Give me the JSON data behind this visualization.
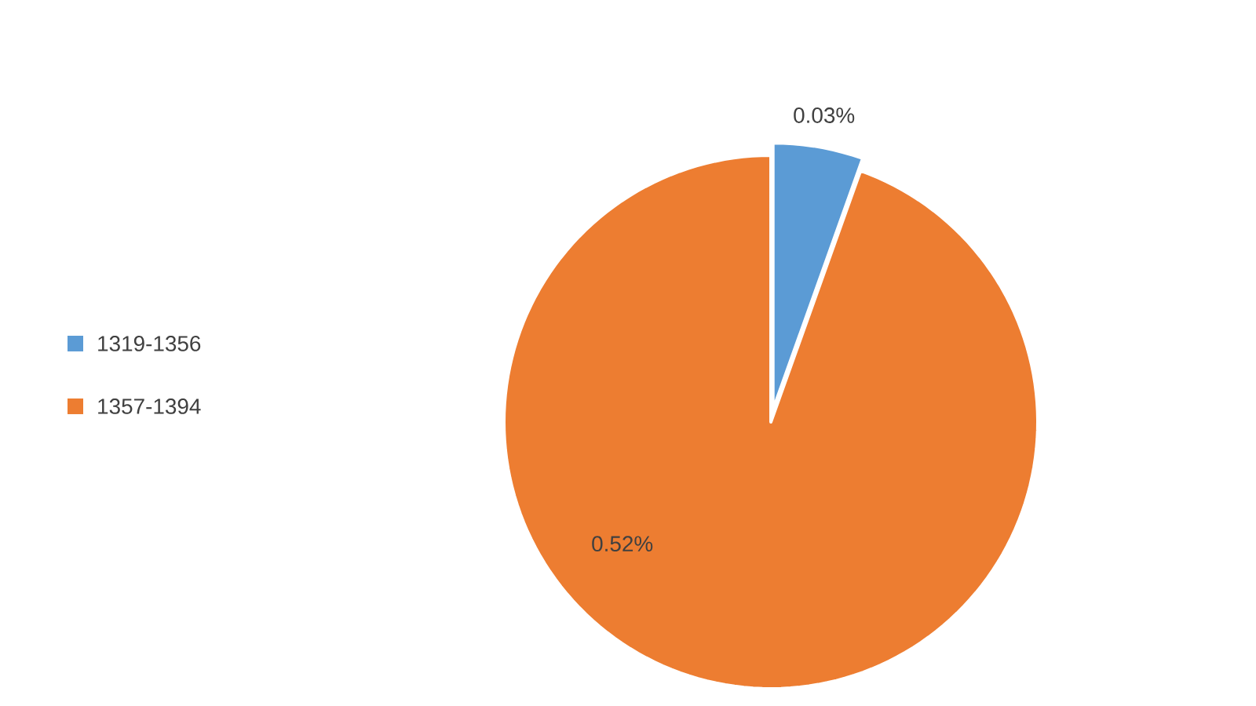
{
  "chart_data": {
    "type": "pie",
    "categories": [
      "1319-1356",
      "1357-1394"
    ],
    "values": [
      0.03,
      0.52
    ],
    "colors": [
      "#5b9bd5",
      "#ed7d31"
    ],
    "value_labels": [
      "0.03%",
      "0.52%"
    ],
    "legend": "left"
  }
}
